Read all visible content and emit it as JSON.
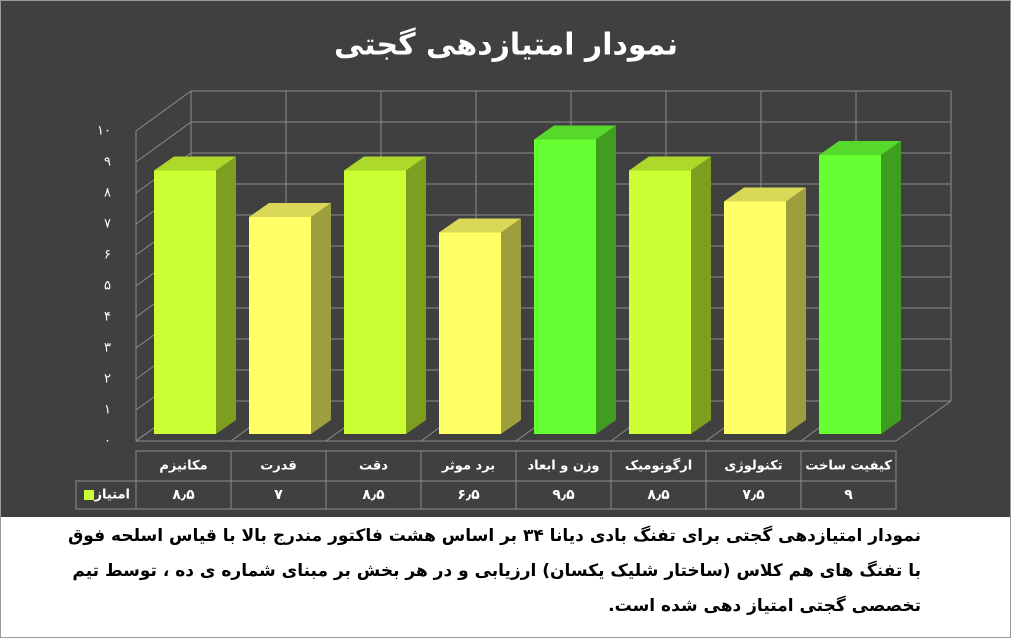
{
  "chart_data": {
    "type": "bar3d",
    "title": "نمودار امتیازدهی گجتی",
    "categories": [
      "مکانیزم",
      "قدرت",
      "دقت",
      "برد موثر",
      "وزن و ابعاد",
      "ارگونومیک",
      "تکنولوژی",
      "کیفیت ساخت"
    ],
    "series": [
      {
        "name": "امتیاز",
        "color": "#ccff33",
        "colors": [
          "#ccff33",
          "#ffff66",
          "#ccff33",
          "#ffff66",
          "#66ff33",
          "#ccff33",
          "#ffff66",
          "#66ff33"
        ],
        "values": [
          8.5,
          7,
          8.5,
          6.5,
          9.5,
          8.5,
          7.5,
          9
        ],
        "value_labels": [
          "۸٫۵",
          "۷",
          "۸٫۵",
          "۶٫۵",
          "۹٫۵",
          "۸٫۵",
          "۷٫۵",
          "۹"
        ]
      }
    ],
    "ylim": [
      0,
      10
    ],
    "yticks": [
      {
        "value": 0,
        "label": "۰"
      },
      {
        "value": 1,
        "label": "۱"
      },
      {
        "value": 2,
        "label": "۲"
      },
      {
        "value": 3,
        "label": "۳"
      },
      {
        "value": 4,
        "label": "۴"
      },
      {
        "value": 5,
        "label": "۵"
      },
      {
        "value": 6,
        "label": "۶"
      },
      {
        "value": 7,
        "label": "۷"
      },
      {
        "value": 8,
        "label": "۸"
      },
      {
        "value": 9,
        "label": "۹"
      },
      {
        "value": 10,
        "label": "۱۰"
      }
    ],
    "grid": true,
    "caption": [
      "نمودار امتیازدهی گجتی برای تفنگ بادی دیانا ۳۴ بر اساس هشت فاکتور مندرج بالا با قیاس اسلحه فوق",
      "با تفنگ های هم کلاس (ساختار شلیک یکسان) ارزیابی و در هر بخش بر مبنای شماره ی ده ، توسط تیم",
      "تخصصی گجتی امتیاز دهی شده است."
    ]
  }
}
